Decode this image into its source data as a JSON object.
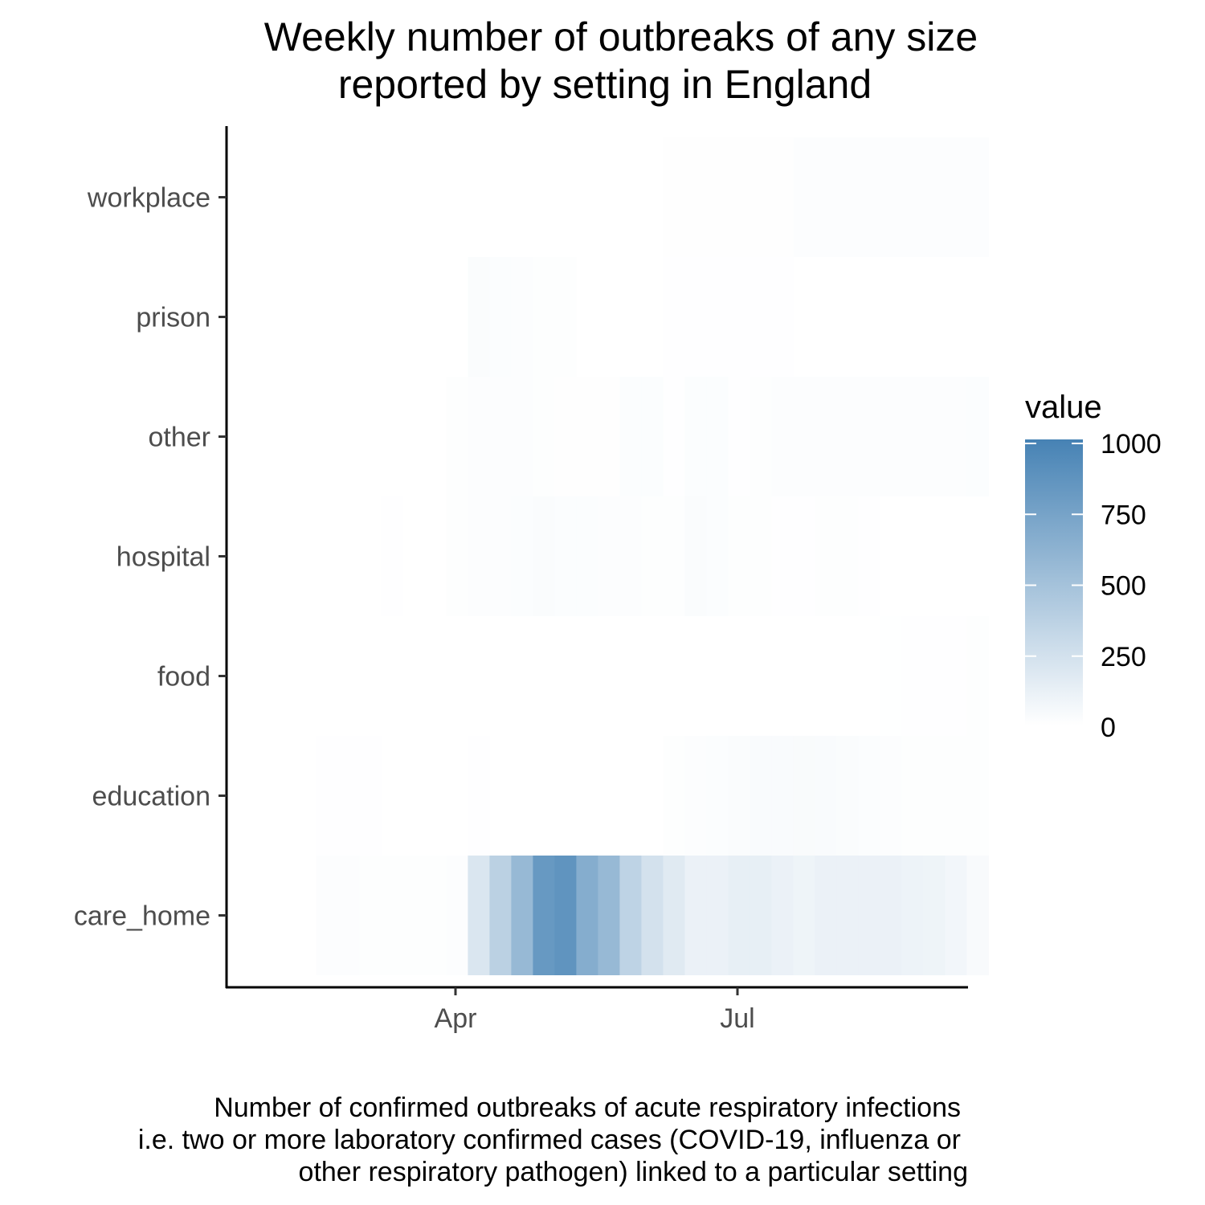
{
  "chart_data": {
    "type": "heatmap",
    "title": [
      "Weekly number of outbreaks of any size",
      "reported by setting in England"
    ],
    "xlabel": "",
    "ylabel": "",
    "x_tick_labels": [
      "Apr",
      "Jul"
    ],
    "x_ticks": [
      "2020-04-01",
      "2020-07-01"
    ],
    "week_starts": [
      "2020-02-16",
      "2020-02-23",
      "2020-03-01",
      "2020-03-08",
      "2020-03-15",
      "2020-03-22",
      "2020-03-29",
      "2020-04-05",
      "2020-04-12",
      "2020-04-19",
      "2020-04-26",
      "2020-05-03",
      "2020-05-10",
      "2020-05-17",
      "2020-05-24",
      "2020-05-31",
      "2020-06-07",
      "2020-06-14",
      "2020-06-21",
      "2020-06-28",
      "2020-07-05",
      "2020-07-12",
      "2020-07-19",
      "2020-07-26",
      "2020-08-02",
      "2020-08-09",
      "2020-08-16",
      "2020-08-23",
      "2020-08-30",
      "2020-09-06",
      "2020-09-13"
    ],
    "categories": [
      "care_home",
      "education",
      "food",
      "hospital",
      "other",
      "prison",
      "workplace"
    ],
    "values": {
      "care_home": [
        15,
        15,
        12,
        12,
        12,
        12,
        15,
        200,
        370,
        560,
        820,
        860,
        660,
        560,
        350,
        240,
        170,
        110,
        110,
        130,
        130,
        110,
        90,
        110,
        110,
        110,
        110,
        100,
        90,
        70,
        40
      ],
      "education": [
        5,
        5,
        5,
        0,
        0,
        0,
        0,
        5,
        0,
        0,
        0,
        0,
        0,
        0,
        0,
        0,
        10,
        15,
        20,
        25,
        30,
        30,
        35,
        30,
        25,
        20,
        15,
        10,
        10,
        10,
        10
      ],
      "food": [
        0,
        0,
        0,
        0,
        0,
        0,
        0,
        0,
        0,
        0,
        0,
        0,
        0,
        0,
        0,
        0,
        0,
        0,
        0,
        0,
        0,
        0,
        0,
        0,
        0,
        0,
        3,
        5,
        5,
        5,
        10
      ],
      "hospital": [
        0,
        0,
        0,
        5,
        0,
        0,
        10,
        15,
        15,
        20,
        25,
        20,
        20,
        15,
        15,
        10,
        10,
        25,
        20,
        10,
        10,
        5,
        5,
        10,
        10,
        5,
        0,
        0,
        0,
        0,
        0
      ],
      "other": [
        0,
        0,
        0,
        0,
        0,
        0,
        10,
        15,
        15,
        15,
        10,
        8,
        8,
        8,
        20,
        20,
        5,
        20,
        20,
        5,
        10,
        15,
        15,
        15,
        15,
        15,
        15,
        15,
        15,
        15,
        20
      ],
      "prison": [
        0,
        0,
        0,
        0,
        0,
        0,
        0,
        25,
        20,
        15,
        10,
        10,
        0,
        0,
        0,
        0,
        5,
        5,
        5,
        5,
        5,
        5,
        0,
        0,
        0,
        0,
        0,
        0,
        0,
        0,
        0
      ],
      "workplace": [
        0,
        0,
        0,
        0,
        0,
        0,
        0,
        0,
        0,
        0,
        0,
        0,
        0,
        0,
        0,
        0,
        8,
        8,
        8,
        8,
        8,
        8,
        15,
        15,
        15,
        15,
        15,
        15,
        15,
        15,
        15
      ]
    },
    "legend": {
      "title": "value",
      "range": [
        0,
        1000
      ],
      "ticks": [
        0,
        250,
        500,
        750,
        1000
      ],
      "tick_labels": [
        "0",
        "250",
        "500",
        "750",
        "1000"
      ],
      "low_color": "#ffffff",
      "high_color": "#4682b4",
      "placement": "right"
    },
    "caption": [
      "Number of confirmed outbreaks of acute respiratory infections",
      "i.e. two or more laboratory confirmed cases (COVID-19, influenza or",
      "other respiratory pathogen) linked to a particular setting"
    ],
    "grid": false
  }
}
